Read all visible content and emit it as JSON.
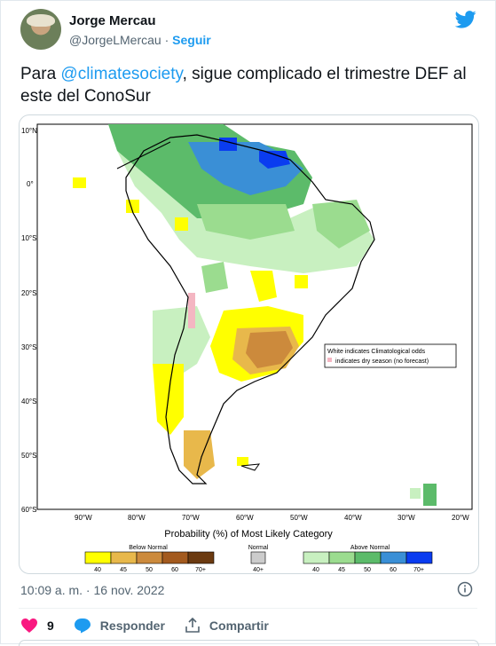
{
  "user": {
    "name": "Jorge Mercau",
    "handle": "@JorgeLMercau",
    "separator": " · ",
    "follow_label": "Seguir"
  },
  "tweet": {
    "text_prefix": "Para ",
    "mention": "@climatesociety",
    "text_suffix": ", sigue complicado el trimestre DEF al este del ConoSur"
  },
  "map": {
    "lat_labels": [
      "10°N",
      "0°",
      "10°S",
      "20°S",
      "30°S",
      "40°S",
      "50°S",
      "60°S"
    ],
    "lon_labels": [
      "90°W",
      "80°W",
      "70°W",
      "60°W",
      "50°W",
      "40°W",
      "30°W",
      "20°W"
    ],
    "legend_box_line1": "White indicates Climatological odds",
    "legend_box_line2": "indicates dry season (no forecast)",
    "colorbar_title": "Probability (%) of Most Likely Category",
    "below_label": "Below Normal",
    "normal_label": "Normal",
    "above_label": "Above Normal",
    "below_ticks": [
      "40",
      "45",
      "50",
      "60",
      "70+"
    ],
    "normal_tick": "40+",
    "above_ticks": [
      "40",
      "45",
      "50",
      "60",
      "70+"
    ],
    "colors": {
      "below": [
        "#ffff00",
        "#e8b84b",
        "#cc8a3c",
        "#a35a1e",
        "#6b3a10"
      ],
      "normal": "#cccccc",
      "above": [
        "#c8f0c0",
        "#9bdc8f",
        "#5cbb6a",
        "#3a8fd6",
        "#0a3cf0"
      ]
    }
  },
  "footer": {
    "timestamp": "10:09 a. m. · 16 nov. 2022",
    "likes": "9",
    "reply_label": "Responder",
    "share_label": "Compartir"
  }
}
